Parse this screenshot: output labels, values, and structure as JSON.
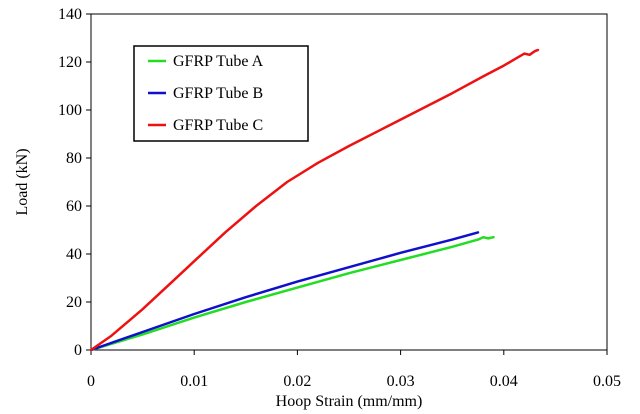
{
  "chart_data": {
    "type": "line",
    "title": "",
    "xlabel": "Hoop Strain (mm/mm)",
    "ylabel": "Load (kN)",
    "xlim": [
      0,
      0.05
    ],
    "ylim": [
      0,
      140
    ],
    "xticks": [
      0,
      0.01,
      0.02,
      0.03,
      0.04,
      0.05
    ],
    "xtick_labels": [
      "0",
      "0.01",
      "0.02",
      "0.03",
      "0.04",
      "0.05"
    ],
    "yticks": [
      0,
      20,
      40,
      60,
      80,
      100,
      120,
      140
    ],
    "ytick_labels": [
      "0",
      "20",
      "40",
      "60",
      "80",
      "100",
      "120",
      "140"
    ],
    "grid": false,
    "legend_position": "top-left",
    "series": [
      {
        "name": "GFRP Tube A",
        "color": "#22dd22",
        "x": [
          0,
          0.005,
          0.01,
          0.015,
          0.02,
          0.025,
          0.03,
          0.035,
          0.0375,
          0.038,
          0.0385,
          0.039
        ],
        "y": [
          0,
          6.5,
          13.5,
          20,
          26,
          32,
          37.5,
          43,
          46,
          47,
          46.5,
          47
        ]
      },
      {
        "name": "GFRP Tube B",
        "color": "#1010cc",
        "x": [
          0,
          0.005,
          0.01,
          0.015,
          0.02,
          0.025,
          0.03,
          0.035,
          0.0375
        ],
        "y": [
          0,
          7.5,
          15,
          22,
          28.5,
          34.5,
          40.5,
          46,
          49
        ]
      },
      {
        "name": "GFRP Tube C",
        "color": "#ee1111",
        "x": [
          0,
          0.002,
          0.005,
          0.008,
          0.01,
          0.013,
          0.016,
          0.019,
          0.022,
          0.025,
          0.03,
          0.035,
          0.038,
          0.04,
          0.041,
          0.042,
          0.0425,
          0.043,
          0.0433
        ],
        "y": [
          0,
          6,
          17,
          29,
          37,
          49,
          60,
          70,
          78,
          85,
          96,
          107,
          114,
          118.5,
          121,
          123.5,
          123,
          124.5,
          125
        ]
      }
    ]
  }
}
